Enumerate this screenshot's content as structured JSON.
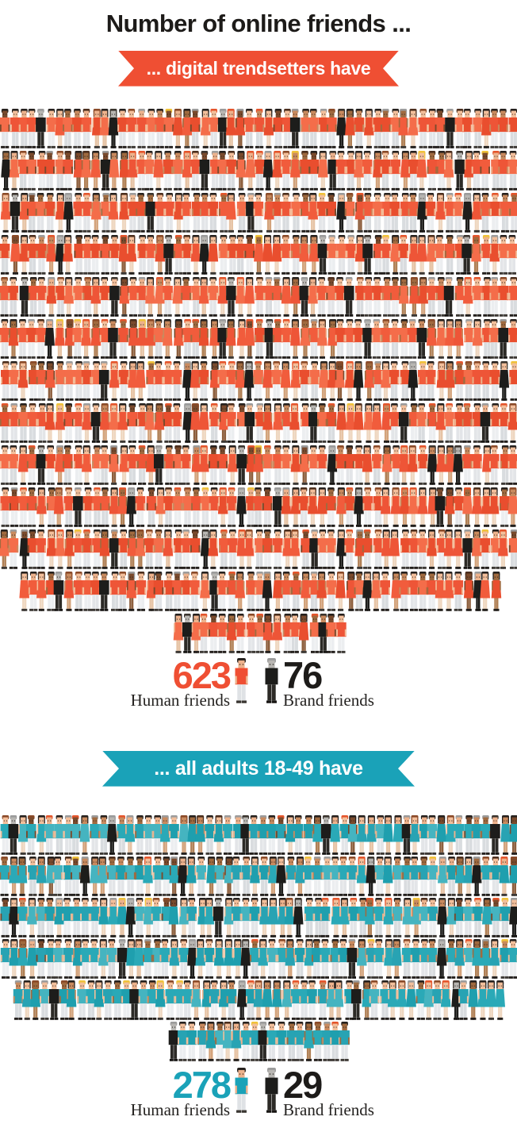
{
  "title": "Number of online friends ...",
  "sections": [
    {
      "banner": "... digital trendsetters have",
      "accent": "#ef4f33",
      "stats": {
        "human": {
          "value": "623",
          "label": "Human friends"
        },
        "brand": {
          "value": "76",
          "label": "Brand friends"
        }
      },
      "crowd": {
        "human": 623,
        "brand": 76
      }
    },
    {
      "banner": "... all adults 18-49 have",
      "accent": "#1aa2b8",
      "stats": {
        "human": {
          "value": "278",
          "label": "Human friends"
        },
        "brand": {
          "value": "29",
          "label": "Brand friends"
        }
      },
      "crowd": {
        "human": 278,
        "brand": 29
      }
    }
  ],
  "chart_data": {
    "type": "pictogram",
    "title": "Number of online friends ...",
    "unit_per_figure": 1,
    "groups": [
      {
        "label": "... digital trendsetters have",
        "series": [
          {
            "name": "Human friends",
            "value": 623,
            "color": "#ef4f33"
          },
          {
            "name": "Brand friends",
            "value": 76,
            "color": "#1d1d1b"
          }
        ]
      },
      {
        "label": "... all adults 18-49 have",
        "series": [
          {
            "name": "Human friends",
            "value": 278,
            "color": "#1aa2b8"
          },
          {
            "name": "Brand friends",
            "value": 29,
            "color": "#1d1d1b"
          }
        ]
      }
    ],
    "legend_position": "below each group"
  },
  "colors": {
    "brand_black": "#1d1d1b",
    "text_dark": "#1d1b19"
  }
}
